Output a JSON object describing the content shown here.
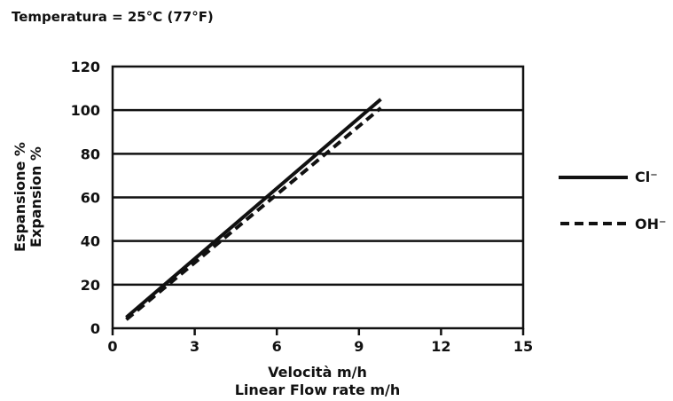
{
  "chart_data": {
    "type": "line",
    "title": "Temperatura = 25°C (77°F)",
    "xlabel": [
      "Velocità m/h",
      "Linear Flow rate m/h"
    ],
    "ylabel": [
      "Espansione %",
      "Expansion %"
    ],
    "xlim": [
      0,
      15
    ],
    "ylim": [
      0,
      120
    ],
    "x_ticks": [
      "0",
      "3",
      "6",
      "9",
      "12",
      "15"
    ],
    "y_ticks": [
      "0",
      "20",
      "40",
      "60",
      "80",
      "100",
      "120"
    ],
    "grid": "horizontal",
    "legend": {
      "placement": "right"
    },
    "series": [
      {
        "name": "Cl⁻",
        "line_style": "solid",
        "color": "#111111",
        "x": [
          0.5,
          9.8
        ],
        "y": [
          5,
          105
        ]
      },
      {
        "name": "OH⁻",
        "line_style": "dashed",
        "color": "#111111",
        "x": [
          0.5,
          9.8
        ],
        "y": [
          4,
          101
        ]
      }
    ]
  }
}
